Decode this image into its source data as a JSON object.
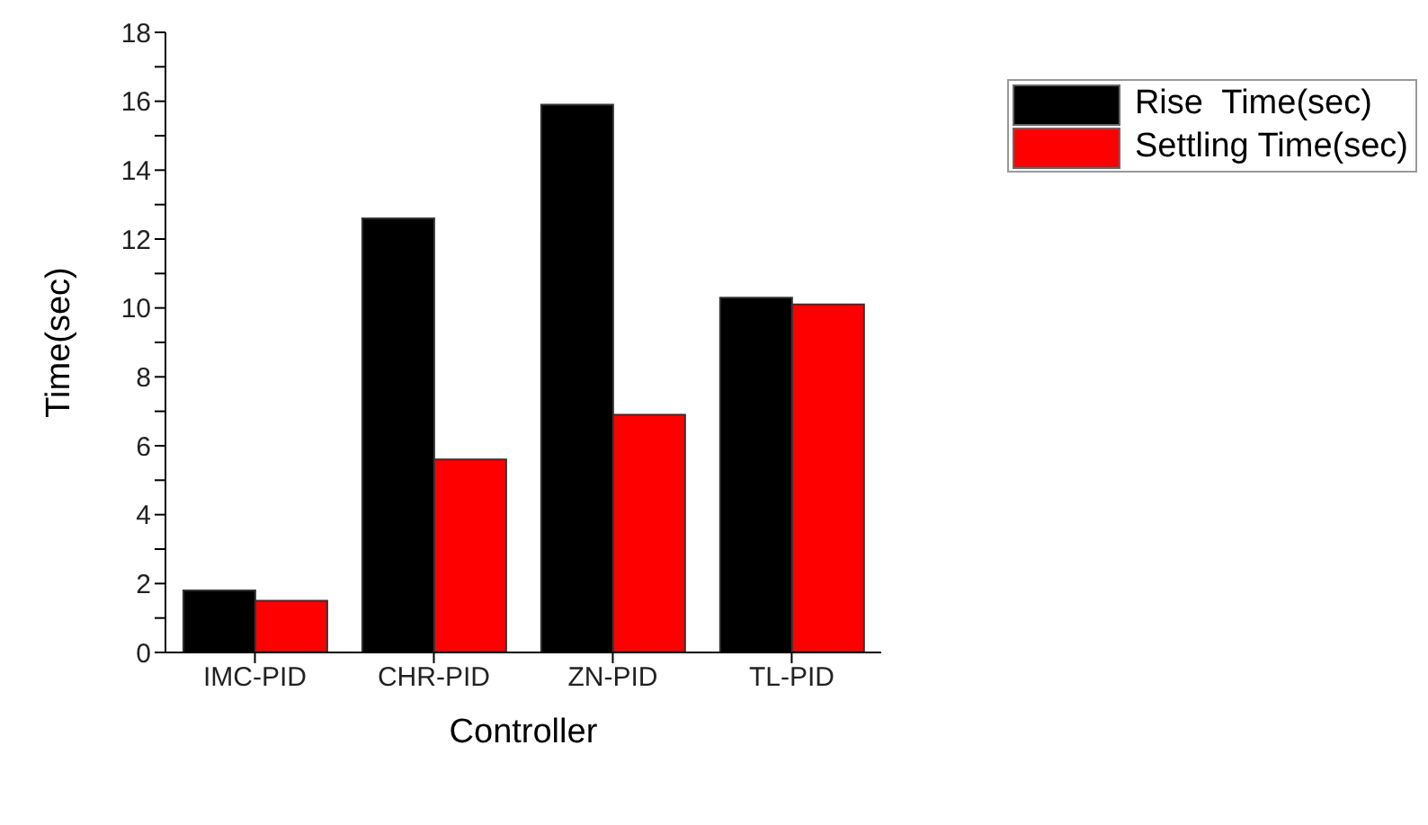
{
  "chart_data": {
    "type": "bar",
    "xlabel": "Controller",
    "ylabel": "Time(sec)",
    "categories": [
      "IMC-PID",
      "CHR-PID",
      "ZN-PID",
      "TL-PID"
    ],
    "series": [
      {
        "name": "Rise  Time(sec)",
        "color": "#000000",
        "values": [
          1.8,
          12.6,
          15.9,
          10.3
        ]
      },
      {
        "name": "Settling Time(sec)",
        "color": "#ff0000",
        "values": [
          1.5,
          5.6,
          6.9,
          10.1
        ]
      }
    ],
    "ylim": [
      0,
      18
    ],
    "yticks": [
      0,
      {
        "value": 1,
        "label": null
      },
      2,
      {
        "value": 3,
        "label": null
      },
      4,
      {
        "value": 5,
        "label": null
      },
      6,
      {
        "value": 7,
        "label": null
      },
      8,
      {
        "value": 9,
        "label": null
      },
      10,
      {
        "value": 11,
        "label": null
      },
      12,
      {
        "value": 13,
        "label": null
      },
      14,
      {
        "value": 15,
        "label": null
      },
      16,
      {
        "value": 17,
        "label": null
      },
      18
    ],
    "grid": false,
    "legend": "top right"
  }
}
